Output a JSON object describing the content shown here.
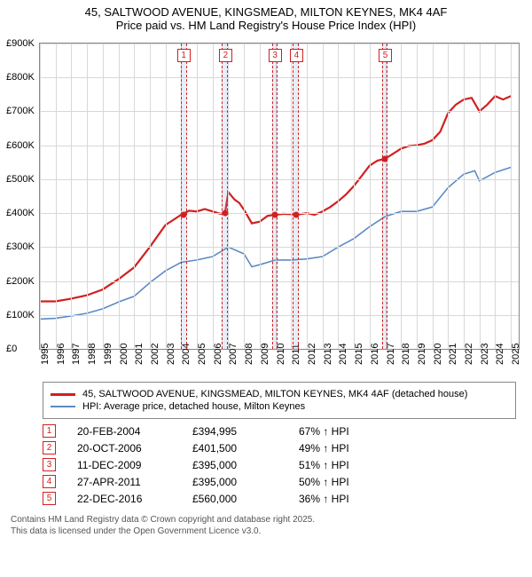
{
  "title": {
    "line1": "45, SALTWOOD AVENUE, KINGSMEAD, MILTON KEYNES, MK4 4AF",
    "line2": "Price paid vs. HM Land Registry's House Price Index (HPI)"
  },
  "chart": {
    "type": "line",
    "background_color": "#ffffff",
    "grid_color": "#d8d8d8",
    "axis_color": "#888888",
    "label_fontsize": 11,
    "ylim": [
      0,
      900000
    ],
    "ytick_step": 100000,
    "yticks": [
      "£0",
      "£100K",
      "£200K",
      "£300K",
      "£400K",
      "£500K",
      "£600K",
      "£700K",
      "£800K",
      "£900K"
    ],
    "xlim": [
      1995,
      2025.5
    ],
    "xticks": [
      1995,
      1996,
      1997,
      1998,
      1999,
      2000,
      2001,
      2002,
      2003,
      2004,
      2005,
      2006,
      2007,
      2008,
      2009,
      2010,
      2011,
      2012,
      2013,
      2014,
      2015,
      2016,
      2017,
      2018,
      2019,
      2020,
      2021,
      2022,
      2023,
      2024,
      2025
    ],
    "bands": [
      {
        "from": 2004.0,
        "to": 2004.3,
        "color": "rgba(120,160,210,0.18)"
      },
      {
        "from": 2006.6,
        "to": 2006.9,
        "color": "rgba(120,160,210,0.18)"
      },
      {
        "from": 2009.8,
        "to": 2010.1,
        "color": "rgba(120,160,210,0.18)"
      },
      {
        "from": 2011.1,
        "to": 2011.45,
        "color": "rgba(120,160,210,0.18)"
      },
      {
        "from": 2016.8,
        "to": 2017.1,
        "color": "rgba(120,160,210,0.18)"
      }
    ],
    "series": [
      {
        "name": "property",
        "color": "#d02020",
        "width": 2.2,
        "points": [
          [
            1995,
            140000
          ],
          [
            1996,
            140000
          ],
          [
            1997,
            148000
          ],
          [
            1998,
            158000
          ],
          [
            1999,
            175000
          ],
          [
            2000,
            205000
          ],
          [
            2001,
            240000
          ],
          [
            2002,
            300000
          ],
          [
            2003,
            365000
          ],
          [
            2004,
            395000
          ],
          [
            2004.5,
            407000
          ],
          [
            2005,
            405000
          ],
          [
            2005.5,
            412000
          ],
          [
            2006,
            405000
          ],
          [
            2006.5,
            398000
          ],
          [
            2006.8,
            401500
          ],
          [
            2007,
            462000
          ],
          [
            2007.4,
            440000
          ],
          [
            2007.7,
            430000
          ],
          [
            2008,
            410000
          ],
          [
            2008.5,
            370000
          ],
          [
            2009,
            375000
          ],
          [
            2009.5,
            392000
          ],
          [
            2009.95,
            395000
          ],
          [
            2010.5,
            398000
          ],
          [
            2011,
            397000
          ],
          [
            2011.3,
            395000
          ],
          [
            2012,
            400000
          ],
          [
            2012.5,
            395000
          ],
          [
            2013,
            405000
          ],
          [
            2013.5,
            418000
          ],
          [
            2014,
            435000
          ],
          [
            2014.5,
            455000
          ],
          [
            2015,
            480000
          ],
          [
            2015.5,
            510000
          ],
          [
            2016,
            540000
          ],
          [
            2016.5,
            555000
          ],
          [
            2016.97,
            560000
          ],
          [
            2017.5,
            575000
          ],
          [
            2018,
            590000
          ],
          [
            2018.5,
            598000
          ],
          [
            2019,
            600000
          ],
          [
            2019.5,
            605000
          ],
          [
            2020,
            615000
          ],
          [
            2020.5,
            640000
          ],
          [
            2021,
            695000
          ],
          [
            2021.5,
            720000
          ],
          [
            2022,
            735000
          ],
          [
            2022.5,
            740000
          ],
          [
            2023,
            700000
          ],
          [
            2023.5,
            720000
          ],
          [
            2024,
            745000
          ],
          [
            2024.5,
            735000
          ],
          [
            2025,
            745000
          ]
        ]
      },
      {
        "name": "hpi",
        "color": "#5b8bc4",
        "width": 1.6,
        "points": [
          [
            1995,
            88000
          ],
          [
            1996,
            90000
          ],
          [
            1997,
            97000
          ],
          [
            1998,
            105000
          ],
          [
            1999,
            118000
          ],
          [
            2000,
            138000
          ],
          [
            2001,
            155000
          ],
          [
            2002,
            195000
          ],
          [
            2003,
            230000
          ],
          [
            2004,
            255000
          ],
          [
            2005,
            262000
          ],
          [
            2006,
            272000
          ],
          [
            2007,
            300000
          ],
          [
            2008,
            280000
          ],
          [
            2008.5,
            242000
          ],
          [
            2009,
            248000
          ],
          [
            2010,
            262000
          ],
          [
            2011,
            262000
          ],
          [
            2012,
            265000
          ],
          [
            2013,
            272000
          ],
          [
            2014,
            300000
          ],
          [
            2015,
            325000
          ],
          [
            2016,
            360000
          ],
          [
            2017,
            390000
          ],
          [
            2018,
            405000
          ],
          [
            2019,
            405000
          ],
          [
            2020,
            418000
          ],
          [
            2021,
            475000
          ],
          [
            2022,
            515000
          ],
          [
            2022.7,
            525000
          ],
          [
            2023,
            495000
          ],
          [
            2024,
            520000
          ],
          [
            2025,
            535000
          ]
        ]
      }
    ],
    "sales": [
      {
        "n": "1",
        "year": 2004.13,
        "price": 394995,
        "date": "20-FEB-2004",
        "price_s": "£394,995",
        "pct": "67% ↑ HPI"
      },
      {
        "n": "2",
        "year": 2006.8,
        "price": 401500,
        "date": "20-OCT-2006",
        "price_s": "£401,500",
        "pct": "49% ↑ HPI"
      },
      {
        "n": "3",
        "year": 2009.95,
        "price": 395000,
        "date": "11-DEC-2009",
        "price_s": "£395,000",
        "pct": "51% ↑ HPI"
      },
      {
        "n": "4",
        "year": 2011.32,
        "price": 395000,
        "date": "27-APR-2011",
        "price_s": "£395,000",
        "pct": "50% ↑ HPI"
      },
      {
        "n": "5",
        "year": 2016.97,
        "price": 560000,
        "date": "22-DEC-2016",
        "price_s": "£560,000",
        "pct": "36% ↑ HPI"
      }
    ]
  },
  "legend": {
    "items": [
      {
        "color": "#d02020",
        "width": 3,
        "label": "45, SALTWOOD AVENUE, KINGSMEAD, MILTON KEYNES, MK4 4AF (detached house)"
      },
      {
        "color": "#5b8bc4",
        "width": 2,
        "label": "HPI: Average price, detached house, Milton Keynes"
      }
    ]
  },
  "footer": {
    "line1": "Contains HM Land Registry data © Crown copyright and database right 2025.",
    "line2": "This data is licensed under the Open Government Licence v3.0."
  }
}
